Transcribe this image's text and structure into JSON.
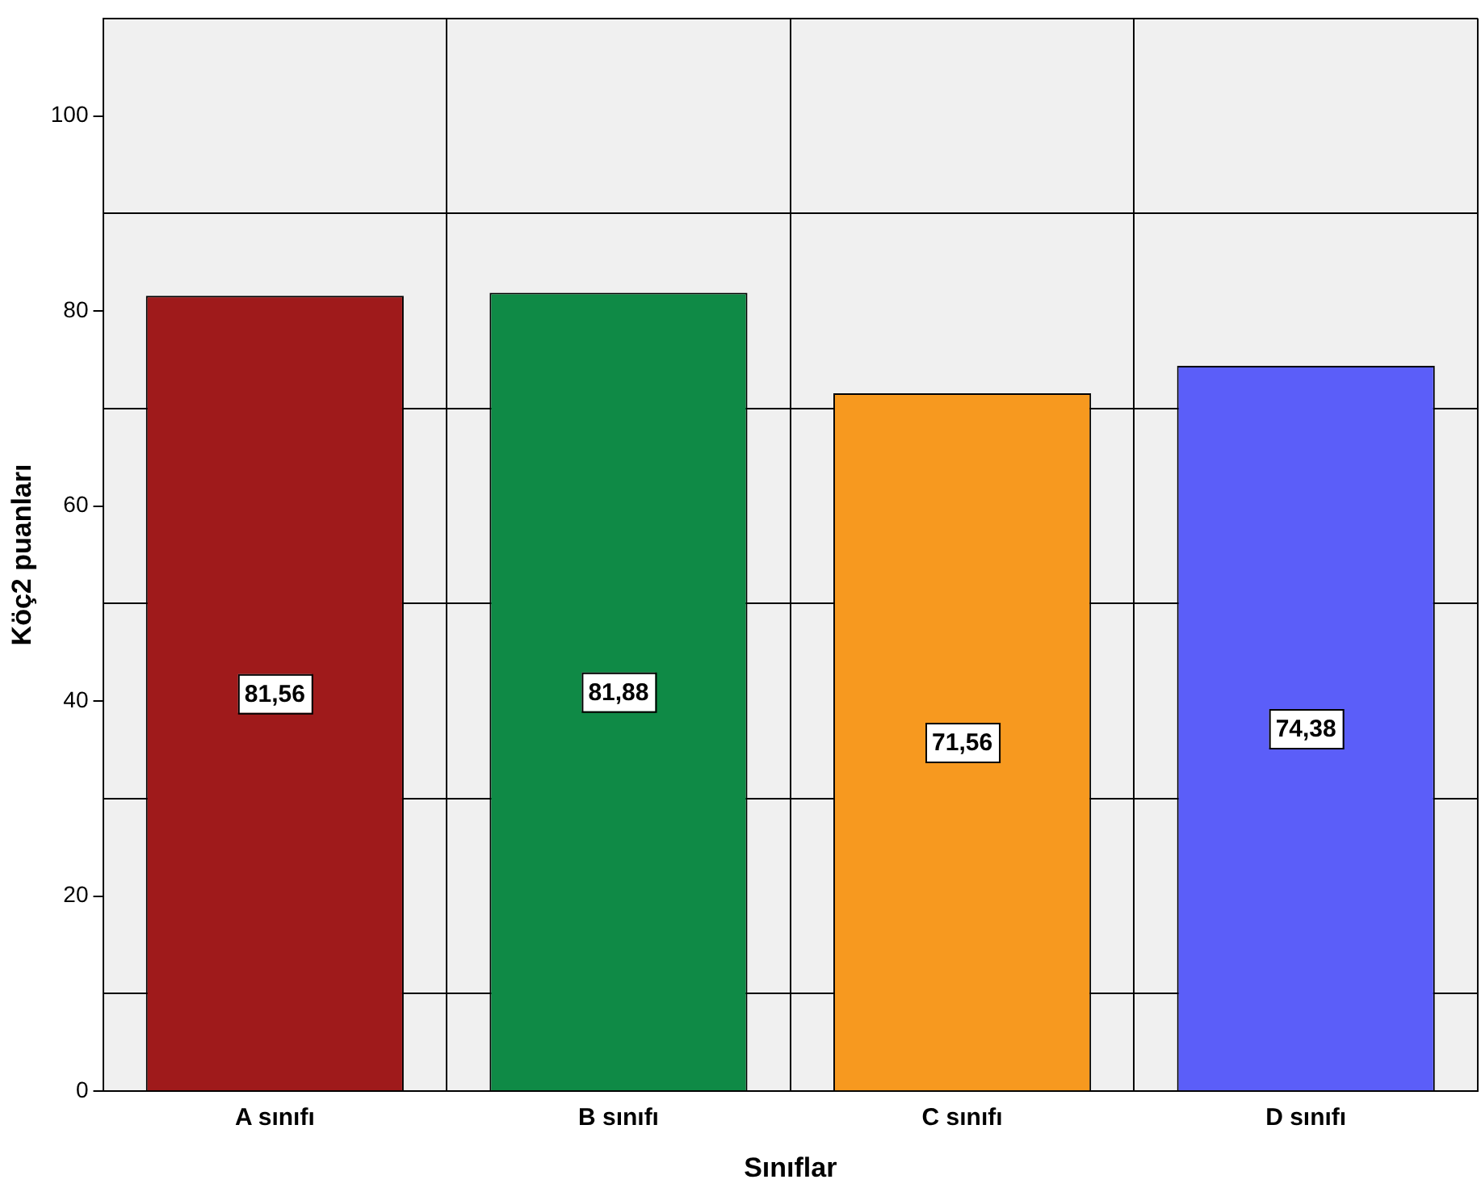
{
  "chart_data": {
    "type": "bar",
    "xlabel": "Sınıflar",
    "ylabel": "Köç2 puanları",
    "categories": [
      "A sınıfı",
      "B sınıfı",
      "C sınıfı",
      "D sınıfı"
    ],
    "values": [
      81.56,
      81.88,
      71.56,
      74.38
    ],
    "colors": [
      "#9f1a1b",
      "#0f8a46",
      "#f7991f",
      "#5b5ef9"
    ],
    "value_labels": [
      "81,56",
      "81,88",
      "71,56",
      "74,38"
    ],
    "ylim": [
      0,
      110
    ],
    "yticks": [
      0,
      {
        "value": 10,
        "label": null
      },
      20,
      {
        "value": 30,
        "label": null
      },
      40,
      {
        "value": 50,
        "label": null
      },
      60,
      {
        "value": 70,
        "label": null
      },
      80,
      {
        "value": 90,
        "label": null
      },
      100,
      {
        "value": 110,
        "label": null
      }
    ],
    "grid": true,
    "legend": false
  }
}
